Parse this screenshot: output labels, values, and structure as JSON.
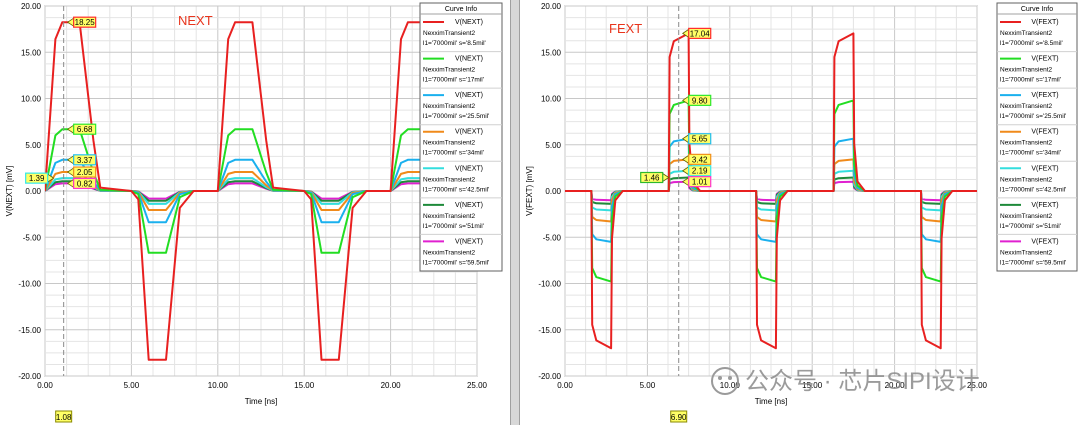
{
  "watermark": "公众号 · 芯片SIPI设计",
  "chart_data": [
    {
      "type": "line",
      "title": "NEXT",
      "title_color": "#e8341c",
      "xlabel": "Time [ns]",
      "ylabel": "V(NEXT) [mV]",
      "xlim": [
        0,
        25
      ],
      "ylim": [
        -20,
        20
      ],
      "xticks": [
        "0.00",
        "5.00",
        "10.00",
        "15.00",
        "20.00",
        "25.00"
      ],
      "yticks": [
        "-20.00",
        "-15.00",
        "-10.00",
        "-5.00",
        "0.00",
        "5.00",
        "10.00",
        "15.00",
        "20.00"
      ],
      "legend_title": "Curve Info",
      "legend_position": "top-right",
      "cursor_x": 1.08,
      "cursor_label": "1.08",
      "cursor_readouts": [
        {
          "text": "18.25",
          "y": 18.25,
          "color": "#ff2b2b"
        },
        {
          "text": "6.68",
          "y": 6.68,
          "color": "#2de82d"
        },
        {
          "text": "3.37",
          "y": 3.37,
          "color": "#22bff0"
        },
        {
          "text": "2.05",
          "y": 2.05,
          "color": "#f0901c"
        },
        {
          "text": "1.39",
          "y": 1.39,
          "color": "#33e8e8",
          "side": "left"
        },
        {
          "text": "0.82",
          "y": 0.82,
          "color": "#ff33cc"
        }
      ],
      "series": [
        {
          "name": "V(NEXT)",
          "setup": "NexximTransient2",
          "params": "l1='7000mil' s='8.5mil'",
          "color": "#e82020",
          "amp": 18.25,
          "neg": 18.25
        },
        {
          "name": "V(NEXT)",
          "setup": "NexximTransient2",
          "params": "l1='7000mil' s='17mil'",
          "color": "#22dd22",
          "amp": 6.68,
          "neg": 6.68
        },
        {
          "name": "V(NEXT)",
          "setup": "NexximTransient2",
          "params": "l1='7000mil' s='25.5mil'",
          "color": "#1ab0ee",
          "amp": 3.37,
          "neg": 3.37
        },
        {
          "name": "V(NEXT)",
          "setup": "NexximTransient2",
          "params": "l1='7000mil' s='34mil'",
          "color": "#f08a1a",
          "amp": 2.05,
          "neg": 2.05
        },
        {
          "name": "V(NEXT)",
          "setup": "NexximTransient2",
          "params": "l1='7000mil' s='42.5mil'",
          "color": "#33dede",
          "amp": 1.39,
          "neg": 1.39
        },
        {
          "name": "V(NEXT)",
          "setup": "NexximTransient2",
          "params": "l1='7000mil' s='51mil'",
          "color": "#1e8a3a",
          "amp": 1.05,
          "neg": 1.05
        },
        {
          "name": "V(NEXT)",
          "setup": "NexximTransient2",
          "params": "l1='7000mil' s='59.5mil'",
          "color": "#e020d0",
          "amp": 0.82,
          "neg": 0.82
        }
      ]
    },
    {
      "type": "line",
      "title": "FEXT",
      "title_color": "#e8341c",
      "xlabel": "Time [ns]",
      "ylabel": "V(FEXT) [mV]",
      "xlim": [
        0,
        25
      ],
      "ylim": [
        -20,
        20
      ],
      "xticks": [
        "0.00",
        "5.00",
        "10.00",
        "15.00",
        "20.00",
        "25.00"
      ],
      "yticks": [
        "-20.00",
        "-15.00",
        "-10.00",
        "-5.00",
        "0.00",
        "5.00",
        "10.00",
        "15.00",
        "20.00"
      ],
      "legend_title": "Curve Info",
      "legend_position": "top-right",
      "cursor_x": 6.9,
      "cursor_label": "6.90",
      "cursor_readouts": [
        {
          "text": "17.04",
          "y": 17.04,
          "color": "#ff2b2b"
        },
        {
          "text": "9.80",
          "y": 9.8,
          "color": "#2de82d"
        },
        {
          "text": "5.65",
          "y": 5.65,
          "color": "#22bff0"
        },
        {
          "text": "3.42",
          "y": 3.42,
          "color": "#f0901c"
        },
        {
          "text": "2.19",
          "y": 2.19,
          "color": "#33e8e8"
        },
        {
          "text": "1.46",
          "y": 1.46,
          "color": "#2db82d",
          "side": "left"
        },
        {
          "text": "1.01",
          "y": 1.01,
          "color": "#ff33cc"
        }
      ],
      "series": [
        {
          "name": "V(FEXT)",
          "setup": "NexximTransient2",
          "params": "l1='7000mil' s='8.5mil'",
          "color": "#e82020",
          "amp": 17.04,
          "neg": 17.0
        },
        {
          "name": "V(FEXT)",
          "setup": "NexximTransient2",
          "params": "l1='7000mil' s='17mil'",
          "color": "#22dd22",
          "amp": 9.8,
          "neg": 9.8
        },
        {
          "name": "V(FEXT)",
          "setup": "NexximTransient2",
          "params": "l1='7000mil' s='25.5mil'",
          "color": "#1ab0ee",
          "amp": 5.65,
          "neg": 5.5
        },
        {
          "name": "V(FEXT)",
          "setup": "NexximTransient2",
          "params": "l1='7000mil' s='34mil'",
          "color": "#f08a1a",
          "amp": 3.42,
          "neg": 3.3
        },
        {
          "name": "V(FEXT)",
          "setup": "NexximTransient2",
          "params": "l1='7000mil' s='42.5mil'",
          "color": "#33dede",
          "amp": 2.19,
          "neg": 2.1
        },
        {
          "name": "V(FEXT)",
          "setup": "NexximTransient2",
          "params": "l1='7000mil' s='51mil'",
          "color": "#1e8a3a",
          "amp": 1.46,
          "neg": 1.4
        },
        {
          "name": "V(FEXT)",
          "setup": "NexximTransient2",
          "params": "l1='7000mil' s='59.5mil'",
          "color": "#e020d0",
          "amp": 1.01,
          "neg": 1.0
        }
      ]
    }
  ]
}
